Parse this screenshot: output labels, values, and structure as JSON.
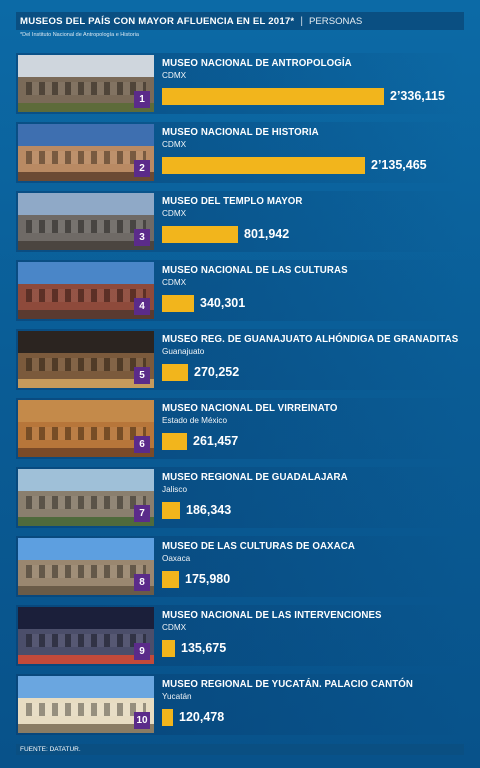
{
  "header": {
    "title": "MUSEOS DEL PAÍS CON MAYOR AFLUENCIA EN EL 2017*",
    "separator": "|",
    "unit": "PERSONAS",
    "footnote": "*Del Instituto Nacional de Antropología e Historia"
  },
  "footer": {
    "source": "FUENTE: DATATUR."
  },
  "colors": {
    "bar": "#f2b51c",
    "rank_badge": "#5b2b8a",
    "background": "#0a5c95"
  },
  "chart_data": {
    "type": "bar",
    "title": "MUSEOS DEL PAÍS CON MAYOR AFLUENCIA EN EL 2017*",
    "ylabel": "PERSONAS",
    "categories": [
      "MUSEO NACIONAL DE ANTROPOLOGÍA",
      "MUSEO NACIONAL DE HISTORIA",
      "MUSEO DEL TEMPLO MAYOR",
      "MUSEO NACIONAL DE LAS CULTURAS",
      "MUSEO REG. DE GUANAJUATO ALHÓNDIGA DE GRANADITAS",
      "MUSEO NACIONAL DEL VIRREINATO",
      "MUSEO REGIONAL DE GUADALAJARA",
      "MUSEO DE LAS CULTURAS DE OAXACA",
      "MUSEO NACIONAL DE LAS INTERVENCIONES",
      "MUSEO REGIONAL DE YUCATÁN. PALACIO CANTÓN"
    ],
    "values": [
      2336115,
      2135465,
      801942,
      340301,
      270252,
      261457,
      186343,
      175980,
      135675,
      120478
    ],
    "items": [
      {
        "rank": "1",
        "name": "MUSEO NACIONAL DE ANTROPOLOGÍA",
        "location": "CDMX",
        "value": 2336115,
        "value_label": "2’336,115"
      },
      {
        "rank": "2",
        "name": "MUSEO NACIONAL DE HISTORIA",
        "location": "CDMX",
        "value": 2135465,
        "value_label": "2’135,465"
      },
      {
        "rank": "3",
        "name": "MUSEO DEL TEMPLO MAYOR",
        "location": "CDMX",
        "value": 801942,
        "value_label": "801,942"
      },
      {
        "rank": "4",
        "name": "MUSEO NACIONAL DE LAS CULTURAS",
        "location": "CDMX",
        "value": 340301,
        "value_label": "340,301"
      },
      {
        "rank": "5",
        "name": "MUSEO REG. DE GUANAJUATO ALHÓNDIGA DE GRANADITAS",
        "location": "Guanajuato",
        "value": 270252,
        "value_label": "270,252"
      },
      {
        "rank": "6",
        "name": "MUSEO NACIONAL DEL VIRREINATO",
        "location": "Estado de México",
        "value": 261457,
        "value_label": "261,457"
      },
      {
        "rank": "7",
        "name": "MUSEO REGIONAL DE GUADALAJARA",
        "location": "Jalisco",
        "value": 186343,
        "value_label": "186,343"
      },
      {
        "rank": "8",
        "name": "MUSEO DE LAS CULTURAS DE OAXACA",
        "location": "Oaxaca",
        "value": 175980,
        "value_label": "175,980"
      },
      {
        "rank": "9",
        "name": "MUSEO NACIONAL DE LAS INTERVENCIONES",
        "location": "CDMX",
        "value": 135675,
        "value_label": "135,675"
      },
      {
        "rank": "10",
        "name": "MUSEO REGIONAL DE YUCATÁN. PALACIO CANTÓN",
        "location": "Yucatán",
        "value": 120478,
        "value_label": "120,478"
      }
    ],
    "xlim": [
      0,
      2336115
    ],
    "grid": false,
    "legend": "none"
  }
}
